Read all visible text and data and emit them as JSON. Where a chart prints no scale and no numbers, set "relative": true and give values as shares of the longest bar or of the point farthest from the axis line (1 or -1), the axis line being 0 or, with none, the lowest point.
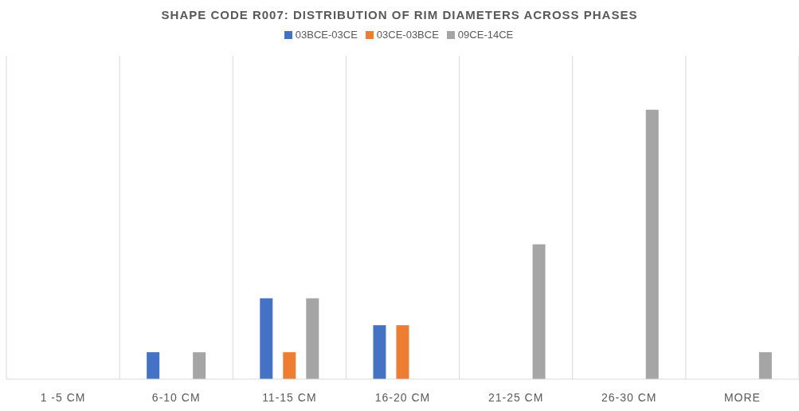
{
  "chart_data": {
    "type": "bar",
    "title": "SHAPE CODE R007: DISTRIBUTION OF RIM DIAMETERS ACROSS PHASES",
    "categories": [
      "1 -5 CM",
      "6-10 CM",
      "11-15 CM",
      "16-20 CM",
      "21-25 CM",
      "26-30 CM",
      "MORE"
    ],
    "relative": true,
    "grid": "x",
    "legend": "top",
    "series": [
      {
        "name": "03BCE-03CE",
        "color": "#4472c4",
        "values": [
          0,
          0.1,
          0.3,
          0.2,
          0,
          0,
          0
        ]
      },
      {
        "name": "03CE-03BCE",
        "color": "#ed7d31",
        "values": [
          0,
          0,
          0.1,
          0.2,
          0,
          0,
          0
        ]
      },
      {
        "name": "09CE-14CE",
        "color": "#a5a5a5",
        "values": [
          0,
          0.1,
          0.3,
          0,
          0.5,
          1,
          0.1
        ]
      }
    ]
  }
}
